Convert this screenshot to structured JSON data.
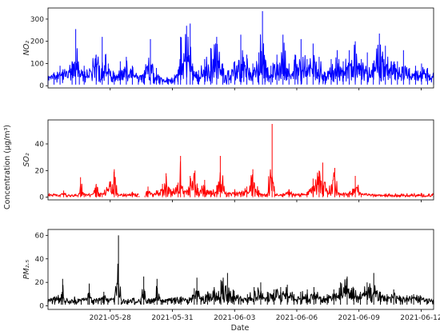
{
  "chart_data": [
    {
      "type": "line",
      "ylabel": "NO₂",
      "color": "#0000ff",
      "ylim": [
        -10,
        350
      ],
      "yticks": [
        0,
        100,
        200,
        300
      ],
      "series": [
        {
          "anchors": [
            [
              0,
              40
            ],
            [
              0.5,
              60
            ],
            [
              1,
              90
            ],
            [
              2,
              110
            ],
            [
              2.3,
              255
            ],
            [
              2.6,
              70
            ],
            [
              3,
              90
            ],
            [
              4,
              140
            ],
            [
              4.5,
              220
            ],
            [
              5,
              100
            ],
            [
              5.5,
              60
            ],
            [
              6,
              110
            ],
            [
              6.5,
              130
            ],
            [
              7,
              90
            ],
            [
              7.5,
              40
            ],
            [
              8,
              70
            ],
            [
              8.5,
              210
            ],
            [
              9,
              80
            ],
            [
              9.5,
              30
            ],
            [
              10,
              20
            ],
            [
              10.5,
              50
            ],
            [
              10.8,
              70
            ],
            [
              11,
              220
            ],
            [
              11.5,
              270
            ],
            [
              11.8,
              280
            ],
            [
              12,
              100
            ],
            [
              12.5,
              70
            ],
            [
              13,
              120
            ],
            [
              13.5,
              170
            ],
            [
              14,
              220
            ],
            [
              14.5,
              100
            ],
            [
              15,
              70
            ],
            [
              15.5,
              110
            ],
            [
              16,
              230
            ],
            [
              16.5,
              140
            ],
            [
              17,
              100
            ],
            [
              17.5,
              150
            ],
            [
              17.8,
              336
            ],
            [
              18,
              120
            ],
            [
              18.5,
              90
            ],
            [
              19,
              140
            ],
            [
              19.5,
              230
            ],
            [
              20,
              100
            ],
            [
              20.5,
              140
            ],
            [
              21,
              210
            ],
            [
              21.5,
              120
            ],
            [
              22,
              190
            ],
            [
              22.5,
              130
            ],
            [
              23,
              60
            ],
            [
              23.5,
              120
            ],
            [
              24,
              160
            ],
            [
              24.5,
              110
            ],
            [
              25,
              160
            ],
            [
              25.5,
              200
            ],
            [
              26,
              120
            ],
            [
              26.5,
              150
            ],
            [
              27,
              100
            ],
            [
              27.5,
              235
            ],
            [
              28,
              180
            ],
            [
              28.5,
              110
            ],
            [
              29,
              110
            ],
            [
              29.5,
              160
            ],
            [
              30,
              80
            ],
            [
              30.5,
              90
            ],
            [
              31,
              100
            ],
            [
              31.5,
              80
            ],
            [
              32,
              60
            ]
          ],
          "baseline": [
            5,
            45
          ]
        }
      ]
    },
    {
      "type": "line",
      "ylabel": "SO₂",
      "color": "#ff0000",
      "ylim": [
        -2,
        58
      ],
      "yticks": [
        0,
        20,
        40
      ],
      "gap": [
        7.55,
        8.05
      ],
      "series": [
        {
          "anchors": [
            [
              0,
              1
            ],
            [
              1,
              1
            ],
            [
              1.3,
              5
            ],
            [
              1.6,
              1
            ],
            [
              2.5,
              1
            ],
            [
              2.7,
              15
            ],
            [
              3,
              3
            ],
            [
              3.5,
              1
            ],
            [
              4,
              10
            ],
            [
              4.5,
              2
            ],
            [
              5.5,
              21
            ],
            [
              5.8,
              3
            ],
            [
              6.5,
              1
            ],
            [
              7,
              4
            ],
            [
              7.4,
              2
            ],
            [
              7.55,
              1
            ],
            [
              8.05,
              1
            ],
            [
              8.3,
              8
            ],
            [
              8.7,
              2
            ],
            [
              9.5,
              10
            ],
            [
              9.8,
              18
            ],
            [
              10.2,
              6
            ],
            [
              10.8,
              11
            ],
            [
              11,
              31
            ],
            [
              11.3,
              5
            ],
            [
              11.8,
              16
            ],
            [
              12.2,
              20
            ],
            [
              12.5,
              4
            ],
            [
              13,
              13
            ],
            [
              13.5,
              5
            ],
            [
              14,
              9
            ],
            [
              14.3,
              31
            ],
            [
              14.8,
              3
            ],
            [
              15.5,
              6
            ],
            [
              16,
              4
            ],
            [
              16.5,
              8
            ],
            [
              17,
              21
            ],
            [
              17.5,
              5
            ],
            [
              17.8,
              2
            ],
            [
              18.2,
              2
            ],
            [
              18.6,
              55
            ],
            [
              18.8,
              2
            ],
            [
              19.5,
              3
            ],
            [
              20,
              6
            ],
            [
              20.5,
              2
            ],
            [
              21.5,
              4
            ],
            [
              22,
              14
            ],
            [
              22.5,
              20
            ],
            [
              22.8,
              26
            ],
            [
              23.2,
              5
            ],
            [
              23.8,
              22
            ],
            [
              24.2,
              3
            ],
            [
              25,
              4
            ],
            [
              25.5,
              16
            ],
            [
              26,
              3
            ],
            [
              27,
              2
            ],
            [
              28,
              1
            ],
            [
              29,
              1
            ],
            [
              30,
              1
            ],
            [
              31,
              1
            ],
            [
              32,
              1
            ]
          ],
          "baseline": [
            0,
            3
          ]
        }
      ]
    },
    {
      "type": "line",
      "ylabel": "PM₂.₅",
      "color": "#000000",
      "ylim": [
        -3,
        65
      ],
      "yticks": [
        0,
        20,
        40,
        60
      ],
      "xlabel": "Date",
      "xtick_labels": [
        "2021-05-28",
        "2021-05-31",
        "2021-06-03",
        "2021-06-06",
        "2021-06-09",
        "2021-06-12"
      ],
      "xtick_days": [
        3,
        6,
        9,
        12,
        15,
        18
      ],
      "series": [
        {
          "anchors": [
            [
              0,
              5
            ],
            [
              0.5,
              8
            ],
            [
              1,
              10
            ],
            [
              1.1,
              23
            ],
            [
              1.3,
              4
            ],
            [
              2,
              8
            ],
            [
              2.5,
              5
            ],
            [
              3,
              10
            ],
            [
              3.1,
              19
            ],
            [
              3.4,
              5
            ],
            [
              4,
              7
            ],
            [
              4.2,
              12
            ],
            [
              4.5,
              6
            ],
            [
              5,
              8
            ],
            [
              5.3,
              60
            ],
            [
              5.5,
              3
            ],
            [
              6,
              5
            ],
            [
              6.5,
              4
            ],
            [
              7,
              6
            ],
            [
              7.2,
              25
            ],
            [
              7.4,
              1
            ],
            [
              8,
              2
            ],
            [
              8.2,
              23
            ],
            [
              8.5,
              3
            ],
            [
              9,
              6
            ],
            [
              9.5,
              7
            ],
            [
              10,
              8
            ],
            [
              10.5,
              5
            ],
            [
              11,
              15
            ],
            [
              11.2,
              24
            ],
            [
              11.5,
              8
            ],
            [
              12,
              12
            ],
            [
              12.5,
              16
            ],
            [
              13,
              22
            ],
            [
              13.5,
              28
            ],
            [
              14,
              13
            ],
            [
              14.5,
              8
            ],
            [
              15,
              10
            ],
            [
              15.5,
              16
            ],
            [
              16,
              20
            ],
            [
              16.5,
              12
            ],
            [
              17,
              14
            ],
            [
              17.5,
              16
            ],
            [
              18,
              18
            ],
            [
              18.5,
              10
            ],
            [
              19,
              12
            ],
            [
              19.5,
              14
            ],
            [
              20,
              16
            ],
            [
              20.5,
              8
            ],
            [
              21,
              10
            ],
            [
              21.5,
              14
            ],
            [
              22,
              20
            ],
            [
              22.5,
              25
            ],
            [
              23,
              15
            ],
            [
              23.5,
              12
            ],
            [
              24,
              20
            ],
            [
              24.5,
              28
            ],
            [
              25,
              12
            ],
            [
              25.5,
              10
            ],
            [
              26,
              14
            ],
            [
              26.5,
              8
            ],
            [
              27,
              9
            ],
            [
              27.5,
              10
            ],
            [
              28,
              9
            ],
            [
              28.5,
              5
            ],
            [
              29,
              4
            ]
          ],
          "baseline": [
            1,
            7
          ]
        }
      ]
    }
  ],
  "shared": {
    "y_axis_label": "Concentration (μg/m³)",
    "x_range_days": [
      0,
      18.6
    ]
  }
}
